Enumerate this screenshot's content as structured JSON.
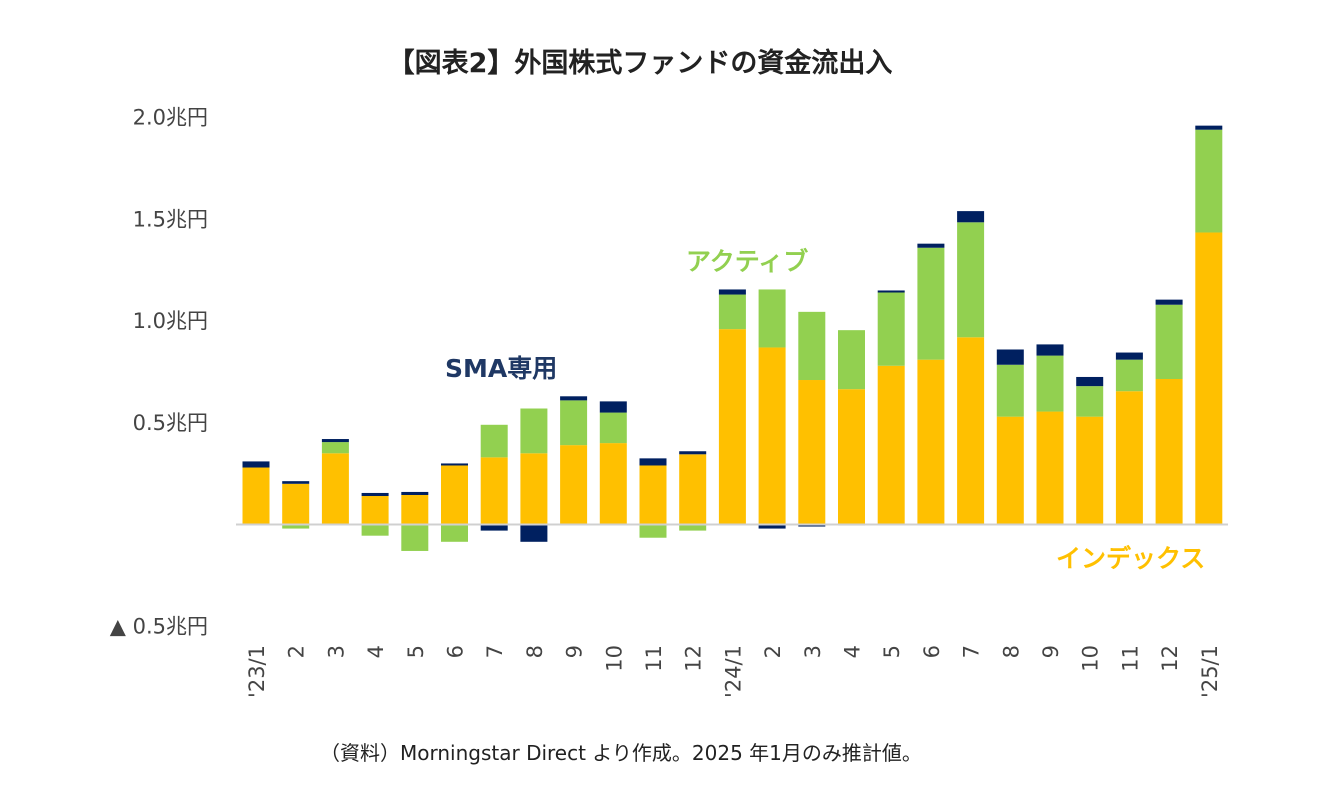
{
  "chart_data": {
    "type": "bar",
    "stacked": true,
    "title": "【図表2】外国株式ファンドの資金流出入",
    "xlabel": "",
    "ylabel": "",
    "ylim": [
      -0.5,
      2.0
    ],
    "y_ticks": [
      {
        "value": 2.0,
        "label": "2.0兆円"
      },
      {
        "value": 1.5,
        "label": "1.5兆円"
      },
      {
        "value": 1.0,
        "label": "1.0兆円"
      },
      {
        "value": 0.5,
        "label": "0.5兆円"
      },
      {
        "value": -0.5,
        "label": "▲ 0.5兆円"
      }
    ],
    "categories": [
      "'23/1",
      "2",
      "3",
      "4",
      "5",
      "6",
      "7",
      "8",
      "9",
      "10",
      "11",
      "12",
      "'24/1",
      "2",
      "3",
      "4",
      "5",
      "6",
      "7",
      "8",
      "9",
      "10",
      "11",
      "12",
      "'25/1"
    ],
    "series": [
      {
        "name": "インデックス",
        "color": "#FFC000",
        "values": [
          0.28,
          0.2,
          0.35,
          0.14,
          0.145,
          0.29,
          0.33,
          0.35,
          0.39,
          0.4,
          0.29,
          0.345,
          0.96,
          0.87,
          0.71,
          0.665,
          0.78,
          0.81,
          0.92,
          0.53,
          0.555,
          0.53,
          0.655,
          0.715,
          1.435
        ]
      },
      {
        "name": "アクティブ",
        "color": "#92D050",
        "values": [
          0.0,
          -0.02,
          0.055,
          -0.055,
          -0.13,
          -0.085,
          0.16,
          0.22,
          0.22,
          0.15,
          -0.065,
          -0.03,
          0.17,
          0.285,
          0.335,
          0.29,
          0.36,
          0.55,
          0.565,
          0.255,
          0.275,
          0.15,
          0.155,
          0.365,
          0.505
        ]
      },
      {
        "name": "SMA専用",
        "color": "#002060",
        "values": [
          0.03,
          0.013,
          0.015,
          0.015,
          0.015,
          0.01,
          -0.03,
          -0.085,
          0.02,
          0.055,
          0.035,
          0.015,
          0.025,
          -0.02,
          -0.01,
          -0.005,
          0.01,
          0.02,
          0.055,
          0.075,
          0.055,
          0.045,
          0.035,
          0.025,
          0.02
        ]
      }
    ],
    "annotations": [
      {
        "text": "SMA専用",
        "color": "#1F3864"
      },
      {
        "text": "アクティブ",
        "color": "#92D050"
      },
      {
        "text": "インデックス",
        "color": "#FFC000"
      }
    ],
    "legend": "none (inline annotations)",
    "grid": false,
    "source_note": "（資料）Morningstar Direct より作成。2025 年1月のみ推計値。"
  }
}
